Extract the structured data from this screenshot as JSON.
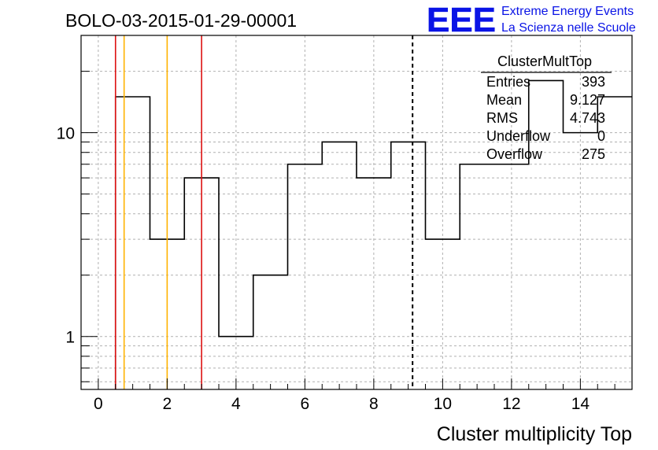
{
  "header": {
    "run_title": "BOLO-03-2015-01-29-00001",
    "logo_text": "EEE",
    "logo_line1": "Extreme Energy Events",
    "logo_line2": "La Scienza nelle Scuole"
  },
  "stats_box": {
    "name": "ClusterMultTop",
    "rows": [
      {
        "label": "Entries",
        "value": "393"
      },
      {
        "label": "Mean",
        "value": "9.127"
      },
      {
        "label": "RMS",
        "value": "4.743"
      },
      {
        "label": "Underflow",
        "value": "0"
      },
      {
        "label": "Overflow",
        "value": "275"
      }
    ]
  },
  "colors": {
    "histogram": "#000000",
    "red_lines": "#dd1111",
    "orange_lines": "#ffb300",
    "logo": "#0a14e6",
    "grid": "#b0b0b0"
  },
  "chart_data": {
    "type": "histogram",
    "title": "",
    "xlabel": "Cluster multiplicity Top",
    "ylabel": "",
    "xlim": [
      -0.5,
      15.5
    ],
    "ylim": [
      0.55,
      30
    ],
    "y_scale": "log",
    "grid": true,
    "x_ticks": [
      0,
      2,
      4,
      6,
      8,
      10,
      12,
      14
    ],
    "y_ticks": [
      1,
      10
    ],
    "bin_edges": [
      0.5,
      1.5,
      2.5,
      3.5,
      4.5,
      5.5,
      6.5,
      7.5,
      8.5,
      9.5,
      10.5,
      11.5,
      12.5,
      13.5,
      14.5,
      15.5
    ],
    "counts": [
      15,
      3,
      6,
      1,
      2,
      7,
      9,
      6,
      9,
      3,
      7,
      7,
      18,
      10,
      15
    ],
    "vertical_lines": [
      {
        "x": 0.5,
        "color": "red",
        "style": "solid"
      },
      {
        "x": 0.75,
        "color": "orange",
        "style": "solid"
      },
      {
        "x": 2.0,
        "color": "orange",
        "style": "solid"
      },
      {
        "x": 3.0,
        "color": "red",
        "style": "solid"
      },
      {
        "x": 9.127,
        "color": "black",
        "style": "dashed"
      }
    ]
  }
}
